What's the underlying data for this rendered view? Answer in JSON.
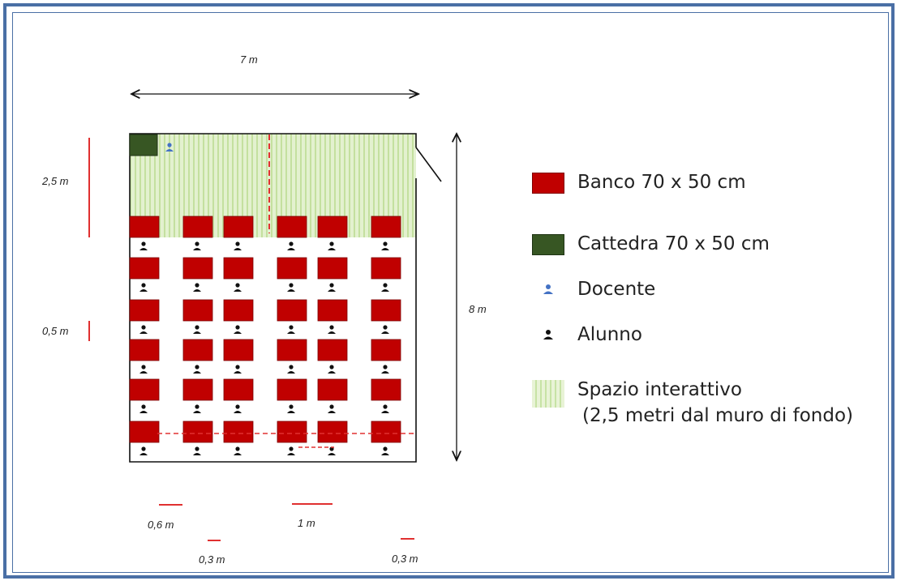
{
  "dimensions": {
    "width_label": "7 m",
    "height_label": "8 m",
    "interactive_depth_label": "2,5 m",
    "row_gap_label": "0,5 m",
    "aisle_label": "0,6 m",
    "center_aisle_label": "1 m",
    "wall_gap_left_label": "0,3 m",
    "wall_gap_right_label": "0,3 m"
  },
  "legend": {
    "desk": "Banco 70 x 50 cm",
    "cattedra": "Cattedra 70 x 50 cm",
    "teacher": "Docente",
    "student": "Alunno",
    "space_line1": "Spazio interattivo",
    "space_line2": "(2,5 metri dal muro di fondo)"
  },
  "layout_model": {
    "desk_columns": 6,
    "desk_rows": 6,
    "students_per_desk": 1
  },
  "colors": {
    "desk": "#c00000",
    "cattedra": "#375623",
    "teacher": "#4472c4",
    "student": "#111111",
    "interactive_space": "#d9ecbf",
    "dimension_marker": "#e03030",
    "frame": "#4a6fa5"
  }
}
